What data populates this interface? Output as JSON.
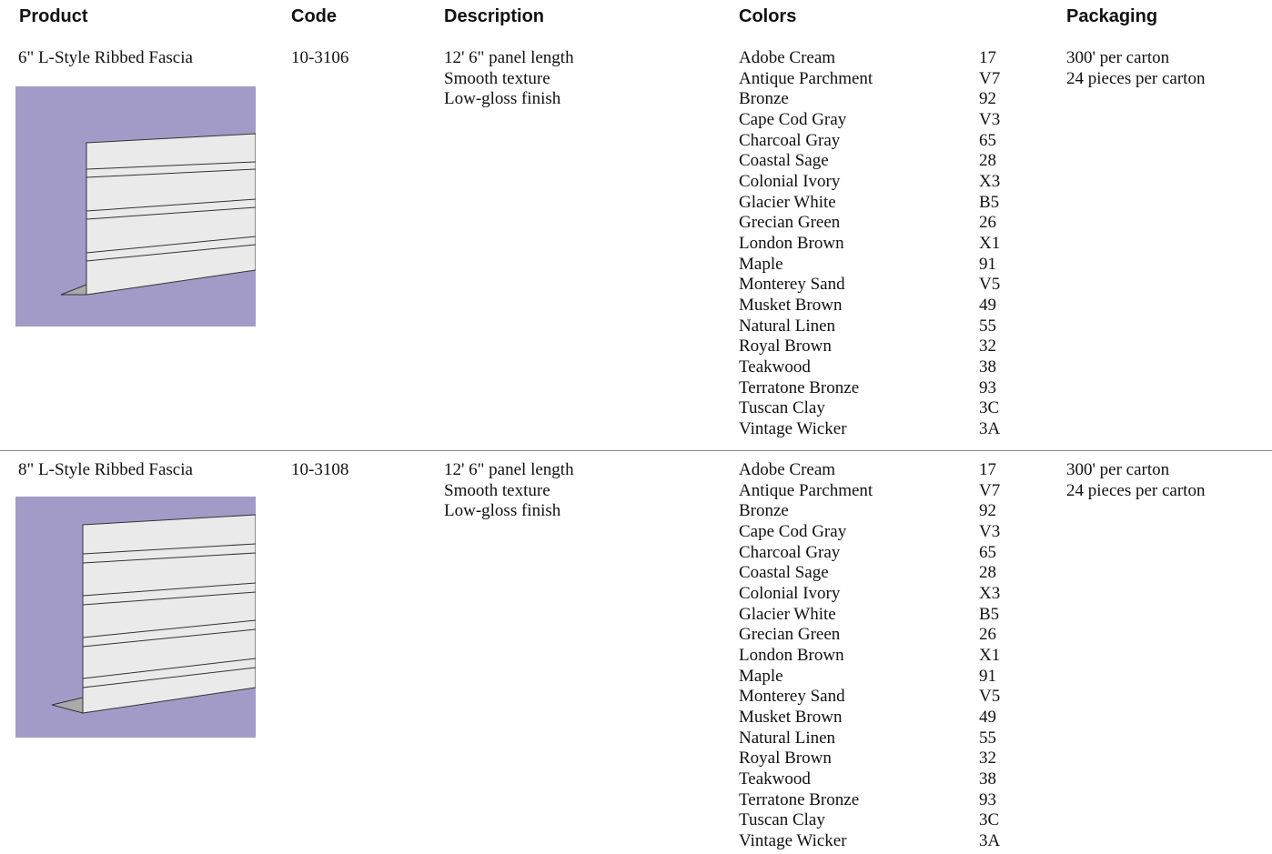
{
  "header": {
    "product": "Product",
    "code": "Code",
    "description": "Description",
    "colors": "Colors",
    "packaging": "Packaging"
  },
  "rows": [
    {
      "product": "6\" L-Style Ribbed Fascia",
      "code": "10-3106",
      "description": [
        "12' 6\" panel length",
        "Smooth texture",
        "Low-gloss finish"
      ],
      "colors": [
        {
          "name": "Adobe Cream",
          "code": "17"
        },
        {
          "name": "Antique Parchment",
          "code": "V7"
        },
        {
          "name": "Bronze",
          "code": "92"
        },
        {
          "name": "Cape Cod Gray",
          "code": "V3"
        },
        {
          "name": "Charcoal Gray",
          "code": "65"
        },
        {
          "name": "Coastal Sage",
          "code": "28"
        },
        {
          "name": "Colonial Ivory",
          "code": "X3"
        },
        {
          "name": "Glacier White",
          "code": "B5"
        },
        {
          "name": "Grecian Green",
          "code": "26"
        },
        {
          "name": "London Brown",
          "code": "X1"
        },
        {
          "name": "Maple",
          "code": "91"
        },
        {
          "name": "Monterey Sand",
          "code": "V5"
        },
        {
          "name": "Musket Brown",
          "code": "49"
        },
        {
          "name": "Natural Linen",
          "code": "55"
        },
        {
          "name": "Royal Brown",
          "code": "32"
        },
        {
          "name": "Teakwood",
          "code": "38"
        },
        {
          "name": "Terratone Bronze",
          "code": "93"
        },
        {
          "name": "Tuscan Clay",
          "code": "3C"
        },
        {
          "name": "Vintage Wicker",
          "code": "3A"
        }
      ],
      "packaging": [
        "300' per carton",
        "24 pieces per carton"
      ]
    },
    {
      "product": "8\" L-Style Ribbed Fascia",
      "code": "10-3108",
      "description": [
        "12' 6\" panel length",
        "Smooth texture",
        "Low-gloss finish"
      ],
      "colors": [
        {
          "name": "Adobe Cream",
          "code": "17"
        },
        {
          "name": "Antique Parchment",
          "code": "V7"
        },
        {
          "name": "Bronze",
          "code": "92"
        },
        {
          "name": "Cape Cod Gray",
          "code": "V3"
        },
        {
          "name": "Charcoal Gray",
          "code": "65"
        },
        {
          "name": "Coastal Sage",
          "code": "28"
        },
        {
          "name": "Colonial Ivory",
          "code": "X3"
        },
        {
          "name": "Glacier White",
          "code": "B5"
        },
        {
          "name": "Grecian Green",
          "code": "26"
        },
        {
          "name": "London Brown",
          "code": "X1"
        },
        {
          "name": "Maple",
          "code": "91"
        },
        {
          "name": "Monterey Sand",
          "code": "V5"
        },
        {
          "name": "Musket Brown",
          "code": "49"
        },
        {
          "name": "Natural Linen",
          "code": "55"
        },
        {
          "name": "Royal Brown",
          "code": "32"
        },
        {
          "name": "Teakwood",
          "code": "38"
        },
        {
          "name": "Terratone Bronze",
          "code": "93"
        },
        {
          "name": "Tuscan Clay",
          "code": "3C"
        },
        {
          "name": "Vintage Wicker",
          "code": "3A"
        }
      ],
      "packaging": [
        "300' per carton",
        "24 pieces per carton"
      ]
    }
  ]
}
